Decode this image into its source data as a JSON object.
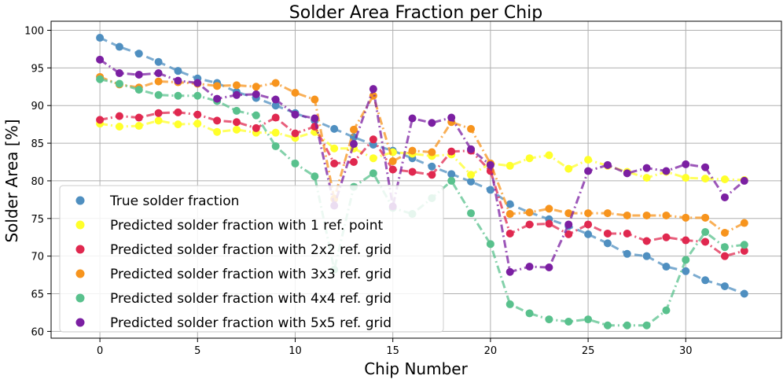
{
  "chart_data": {
    "type": "line",
    "title": "Solder Area Fraction per Chip",
    "xlabel": "Chip Number",
    "ylabel": "Solder Area  [%]",
    "xlim": [
      -2.5,
      34.9
    ],
    "ylim": [
      59.1,
      101.2
    ],
    "xticks": [
      0,
      5,
      10,
      15,
      20,
      25,
      30
    ],
    "yticks": [
      60,
      65,
      70,
      75,
      80,
      85,
      90,
      95,
      100
    ],
    "grid": true,
    "legend_position": "lower-left",
    "x": [
      0,
      1,
      2,
      3,
      4,
      5,
      6,
      7,
      8,
      9,
      10,
      11,
      12,
      13,
      14,
      15,
      16,
      17,
      18,
      19,
      20,
      21,
      22,
      23,
      24,
      25,
      26,
      27,
      28,
      29,
      30,
      31,
      32,
      33
    ],
    "series": [
      {
        "name": "True solder fraction",
        "color": "#4f8fc0",
        "values": [
          99.0,
          97.8,
          96.9,
          95.8,
          94.6,
          93.6,
          93.0,
          91.8,
          91.0,
          90.0,
          89.0,
          88.0,
          86.9,
          85.8,
          84.8,
          84.0,
          83.0,
          81.9,
          80.9,
          79.9,
          78.8,
          76.9,
          75.8,
          74.9,
          74.0,
          72.9,
          71.7,
          70.3,
          70.0,
          68.6,
          68.0,
          66.8,
          66.0,
          65.0
        ]
      },
      {
        "name": "Predicted solder fraction with 1 ref. point",
        "color": "#ffff2a",
        "values": [
          87.6,
          87.2,
          87.3,
          88.0,
          87.5,
          87.6,
          86.5,
          86.8,
          86.4,
          86.4,
          85.7,
          86.5,
          84.3,
          84.3,
          83.0,
          83.8,
          83.6,
          83.3,
          83.5,
          80.8,
          82.3,
          82.0,
          83.0,
          83.4,
          81.6,
          82.8,
          82.0,
          81.2,
          80.4,
          81.2,
          80.4,
          80.3,
          80.2,
          80.1
        ]
      },
      {
        "name": "Predicted solder fraction with 2x2 ref. grid",
        "color": "#e0284f",
        "values": [
          88.1,
          88.6,
          88.4,
          89.0,
          89.1,
          88.8,
          88.0,
          87.8,
          87.0,
          88.4,
          86.3,
          87.2,
          82.3,
          82.5,
          85.5,
          81.5,
          81.2,
          80.8,
          83.9,
          84.0,
          81.3,
          73.0,
          74.2,
          74.3,
          72.9,
          74.2,
          73.0,
          73.0,
          72.0,
          72.5,
          72.1,
          71.9,
          70.0,
          70.7
        ]
      },
      {
        "name": "Predicted solder fraction with 3x3 ref. grid",
        "color": "#f7941d",
        "values": [
          93.8,
          92.8,
          92.4,
          93.2,
          93.1,
          92.9,
          92.6,
          92.7,
          92.5,
          93.0,
          91.7,
          90.8,
          77.6,
          86.8,
          91.3,
          82.6,
          84.0,
          83.8,
          87.8,
          86.9,
          82.3,
          75.6,
          75.8,
          76.3,
          75.7,
          75.7,
          75.7,
          75.4,
          75.4,
          75.4,
          75.1,
          75.1,
          73.1,
          74.4
        ]
      },
      {
        "name": "Predicted solder fraction with 4x4 ref. grid",
        "color": "#59c18d",
        "values": [
          93.5,
          92.9,
          92.1,
          91.4,
          91.3,
          91.3,
          90.6,
          89.3,
          88.7,
          84.6,
          82.3,
          80.6,
          68.2,
          79.2,
          81.0,
          76.4,
          75.6,
          77.7,
          80.0,
          75.7,
          71.6,
          63.6,
          62.4,
          61.6,
          61.3,
          61.6,
          60.8,
          60.8,
          60.8,
          62.8,
          69.5,
          73.2,
          71.2,
          71.5
        ]
      },
      {
        "name": "Predicted solder fraction with 5x5 ref. grid",
        "color": "#7b1fa2",
        "values": [
          96.1,
          94.3,
          94.1,
          94.3,
          93.3,
          93.0,
          90.9,
          91.4,
          91.5,
          90.8,
          88.8,
          88.3,
          76.7,
          84.9,
          92.2,
          76.6,
          88.3,
          87.7,
          88.4,
          84.2,
          82.1,
          67.9,
          68.6,
          68.5,
          74.2,
          81.3,
          82.1,
          81.0,
          81.7,
          81.3,
          82.2,
          81.8,
          77.8,
          80.0
        ]
      }
    ]
  }
}
